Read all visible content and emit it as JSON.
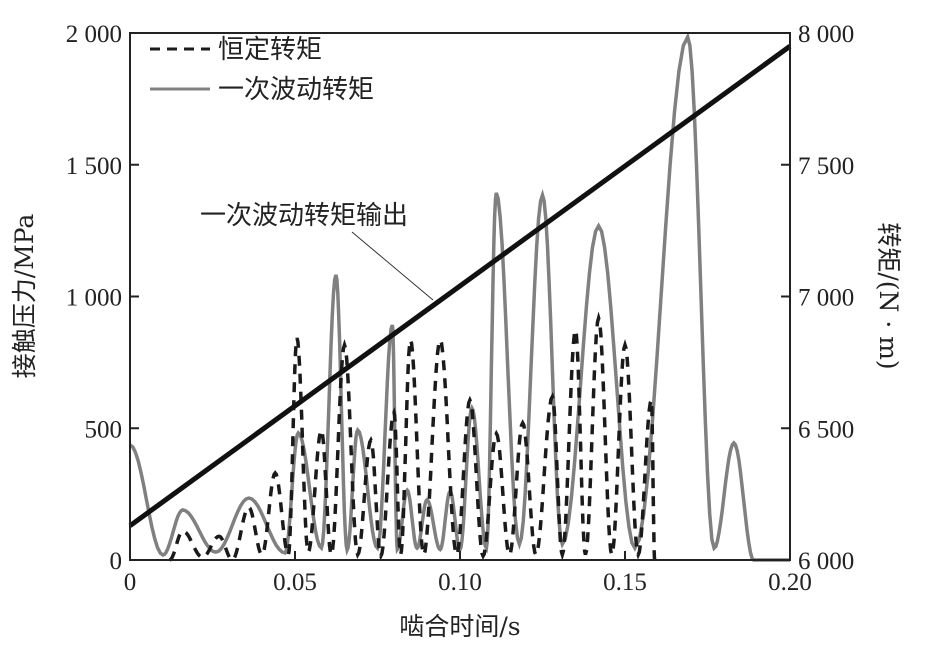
{
  "chart_data": {
    "type": "line",
    "xlabel": "啮合时间/s",
    "ylabel": "接触压力/MPa",
    "y2label": "转矩/(N · m)",
    "xlim": [
      0,
      0.2
    ],
    "ylim": [
      0,
      2000
    ],
    "y2lim": [
      6000,
      8000
    ],
    "x_ticks": [
      "0",
      "0.05",
      "0.10",
      "0.15",
      "0.20"
    ],
    "y_ticks": [
      "0",
      "500",
      "1 000",
      "1 500",
      "2 000"
    ],
    "y2_ticks": [
      "6 000",
      "6 500",
      "7 000",
      "7 500",
      "8 000"
    ],
    "grid": false,
    "legend_placement": "top-left",
    "series": [
      {
        "name": "恒定转矩",
        "axis": "left",
        "style": "dashed",
        "color": "#1a1a1a",
        "extrema": [
          [
            0.012,
            0
          ],
          [
            0.016,
            110
          ],
          [
            0.022,
            10
          ],
          [
            0.027,
            90
          ],
          [
            0.031,
            0
          ],
          [
            0.036,
            200
          ],
          [
            0.04,
            20
          ],
          [
            0.044,
            330
          ],
          [
            0.048,
            20
          ],
          [
            0.0506,
            842
          ],
          [
            0.054,
            30
          ],
          [
            0.058,
            493
          ],
          [
            0.061,
            20
          ],
          [
            0.065,
            816
          ],
          [
            0.069,
            20
          ],
          [
            0.073,
            455
          ],
          [
            0.076,
            15
          ],
          [
            0.08,
            560
          ],
          [
            0.082,
            20
          ],
          [
            0.085,
            835
          ],
          [
            0.089,
            20
          ],
          [
            0.094,
            835
          ],
          [
            0.099,
            20
          ],
          [
            0.103,
            607
          ],
          [
            0.107,
            15
          ],
          [
            0.111,
            480
          ],
          [
            0.115,
            20
          ],
          [
            0.119,
            520
          ],
          [
            0.123,
            20
          ],
          [
            0.128,
            620
          ],
          [
            0.131,
            20
          ],
          [
            0.135,
            873
          ],
          [
            0.138,
            20
          ],
          [
            0.142,
            918
          ],
          [
            0.146,
            20
          ],
          [
            0.15,
            816
          ],
          [
            0.154,
            20
          ],
          [
            0.158,
            607
          ],
          [
            0.159,
            0
          ]
        ]
      },
      {
        "name": "一次波动转矩",
        "axis": "left",
        "style": "solid",
        "color": "#808080",
        "extrema": [
          [
            0,
            436
          ],
          [
            0.01,
            19
          ],
          [
            0.016,
            190
          ],
          [
            0.026,
            30
          ],
          [
            0.036,
            235
          ],
          [
            0.047,
            27
          ],
          [
            0.051,
            482
          ],
          [
            0.058,
            46
          ],
          [
            0.0624,
            1082
          ],
          [
            0.0658,
            38
          ],
          [
            0.069,
            493
          ],
          [
            0.075,
            45
          ],
          [
            0.0795,
            892
          ],
          [
            0.081,
            40
          ],
          [
            0.084,
            265
          ],
          [
            0.087,
            45
          ],
          [
            0.09,
            228
          ],
          [
            0.094,
            40
          ],
          [
            0.097,
            260
          ],
          [
            0.1,
            40
          ],
          [
            0.1036,
            577
          ],
          [
            0.108,
            45
          ],
          [
            0.111,
            1393
          ],
          [
            0.118,
            60
          ],
          [
            0.125,
            1385
          ],
          [
            0.131,
            60
          ],
          [
            0.142,
            1268
          ],
          [
            0.153,
            45
          ],
          [
            0.169,
            1985
          ],
          [
            0.177,
            45
          ],
          [
            0.183,
            444
          ],
          [
            0.189,
            0
          ],
          [
            0.2,
            0
          ]
        ]
      },
      {
        "name": "一次波动转矩输出",
        "axis": "right",
        "style": "solid-thick",
        "color": "#111111",
        "x": [
          0,
          0.2
        ],
        "y": [
          6130,
          7950
        ]
      }
    ],
    "annotations": [
      {
        "text": "一次波动转矩输出",
        "points_to": "一次波动转矩输出"
      }
    ]
  }
}
